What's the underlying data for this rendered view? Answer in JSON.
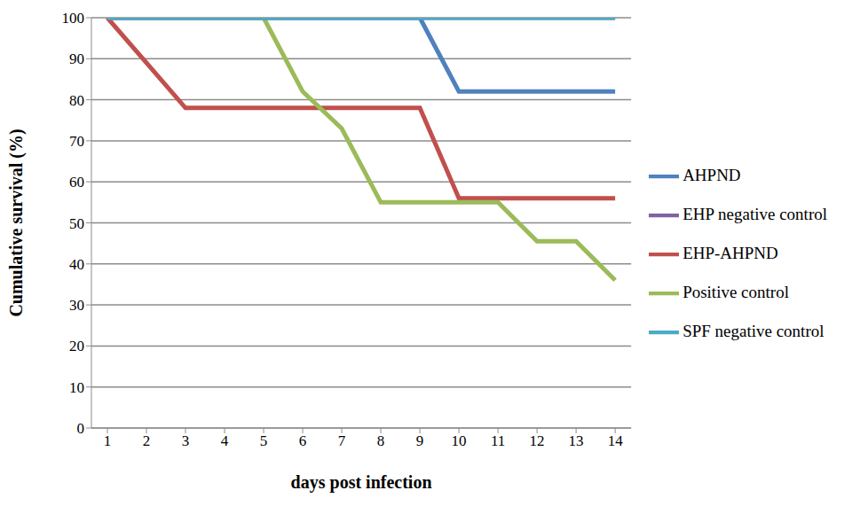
{
  "chart_data": {
    "type": "line",
    "x_label": "days post infection",
    "y_label": "Cumulative survival (%)",
    "categories": [
      1,
      2,
      3,
      4,
      5,
      6,
      7,
      8,
      9,
      10,
      11,
      12,
      13,
      14
    ],
    "series": [
      {
        "name": "AHPND",
        "color": "#4F81BD",
        "values": [
          100,
          100,
          100,
          100,
          100,
          100,
          100,
          100,
          100,
          82,
          82,
          82,
          82,
          82
        ]
      },
      {
        "name": "EHP-AHPND",
        "color": "#C0504D",
        "values": [
          100,
          89,
          78,
          78,
          78,
          78,
          78,
          78,
          78,
          56,
          56,
          56,
          56,
          56
        ]
      },
      {
        "name": "Positive control",
        "color": "#9BBB59",
        "values": [
          100,
          100,
          100,
          100,
          100,
          82,
          73,
          55,
          55,
          55,
          55,
          45.5,
          45.5,
          36
        ]
      },
      {
        "name": "EHP negative control",
        "color": "#8064A2",
        "values": [
          100,
          100,
          100,
          100,
          100,
          100,
          100,
          100,
          100,
          100,
          100,
          100,
          100,
          100
        ]
      },
      {
        "name": "SPF negative control",
        "color": "#4BACC6",
        "values": [
          100,
          100,
          100,
          100,
          100,
          100,
          100,
          100,
          100,
          100,
          100,
          100,
          100,
          100
        ]
      }
    ],
    "ylim": [
      0,
      100
    ],
    "yticks": [
      0,
      10,
      20,
      30,
      40,
      50,
      60,
      70,
      80,
      90,
      100
    ],
    "grid": true,
    "legend": "right"
  }
}
